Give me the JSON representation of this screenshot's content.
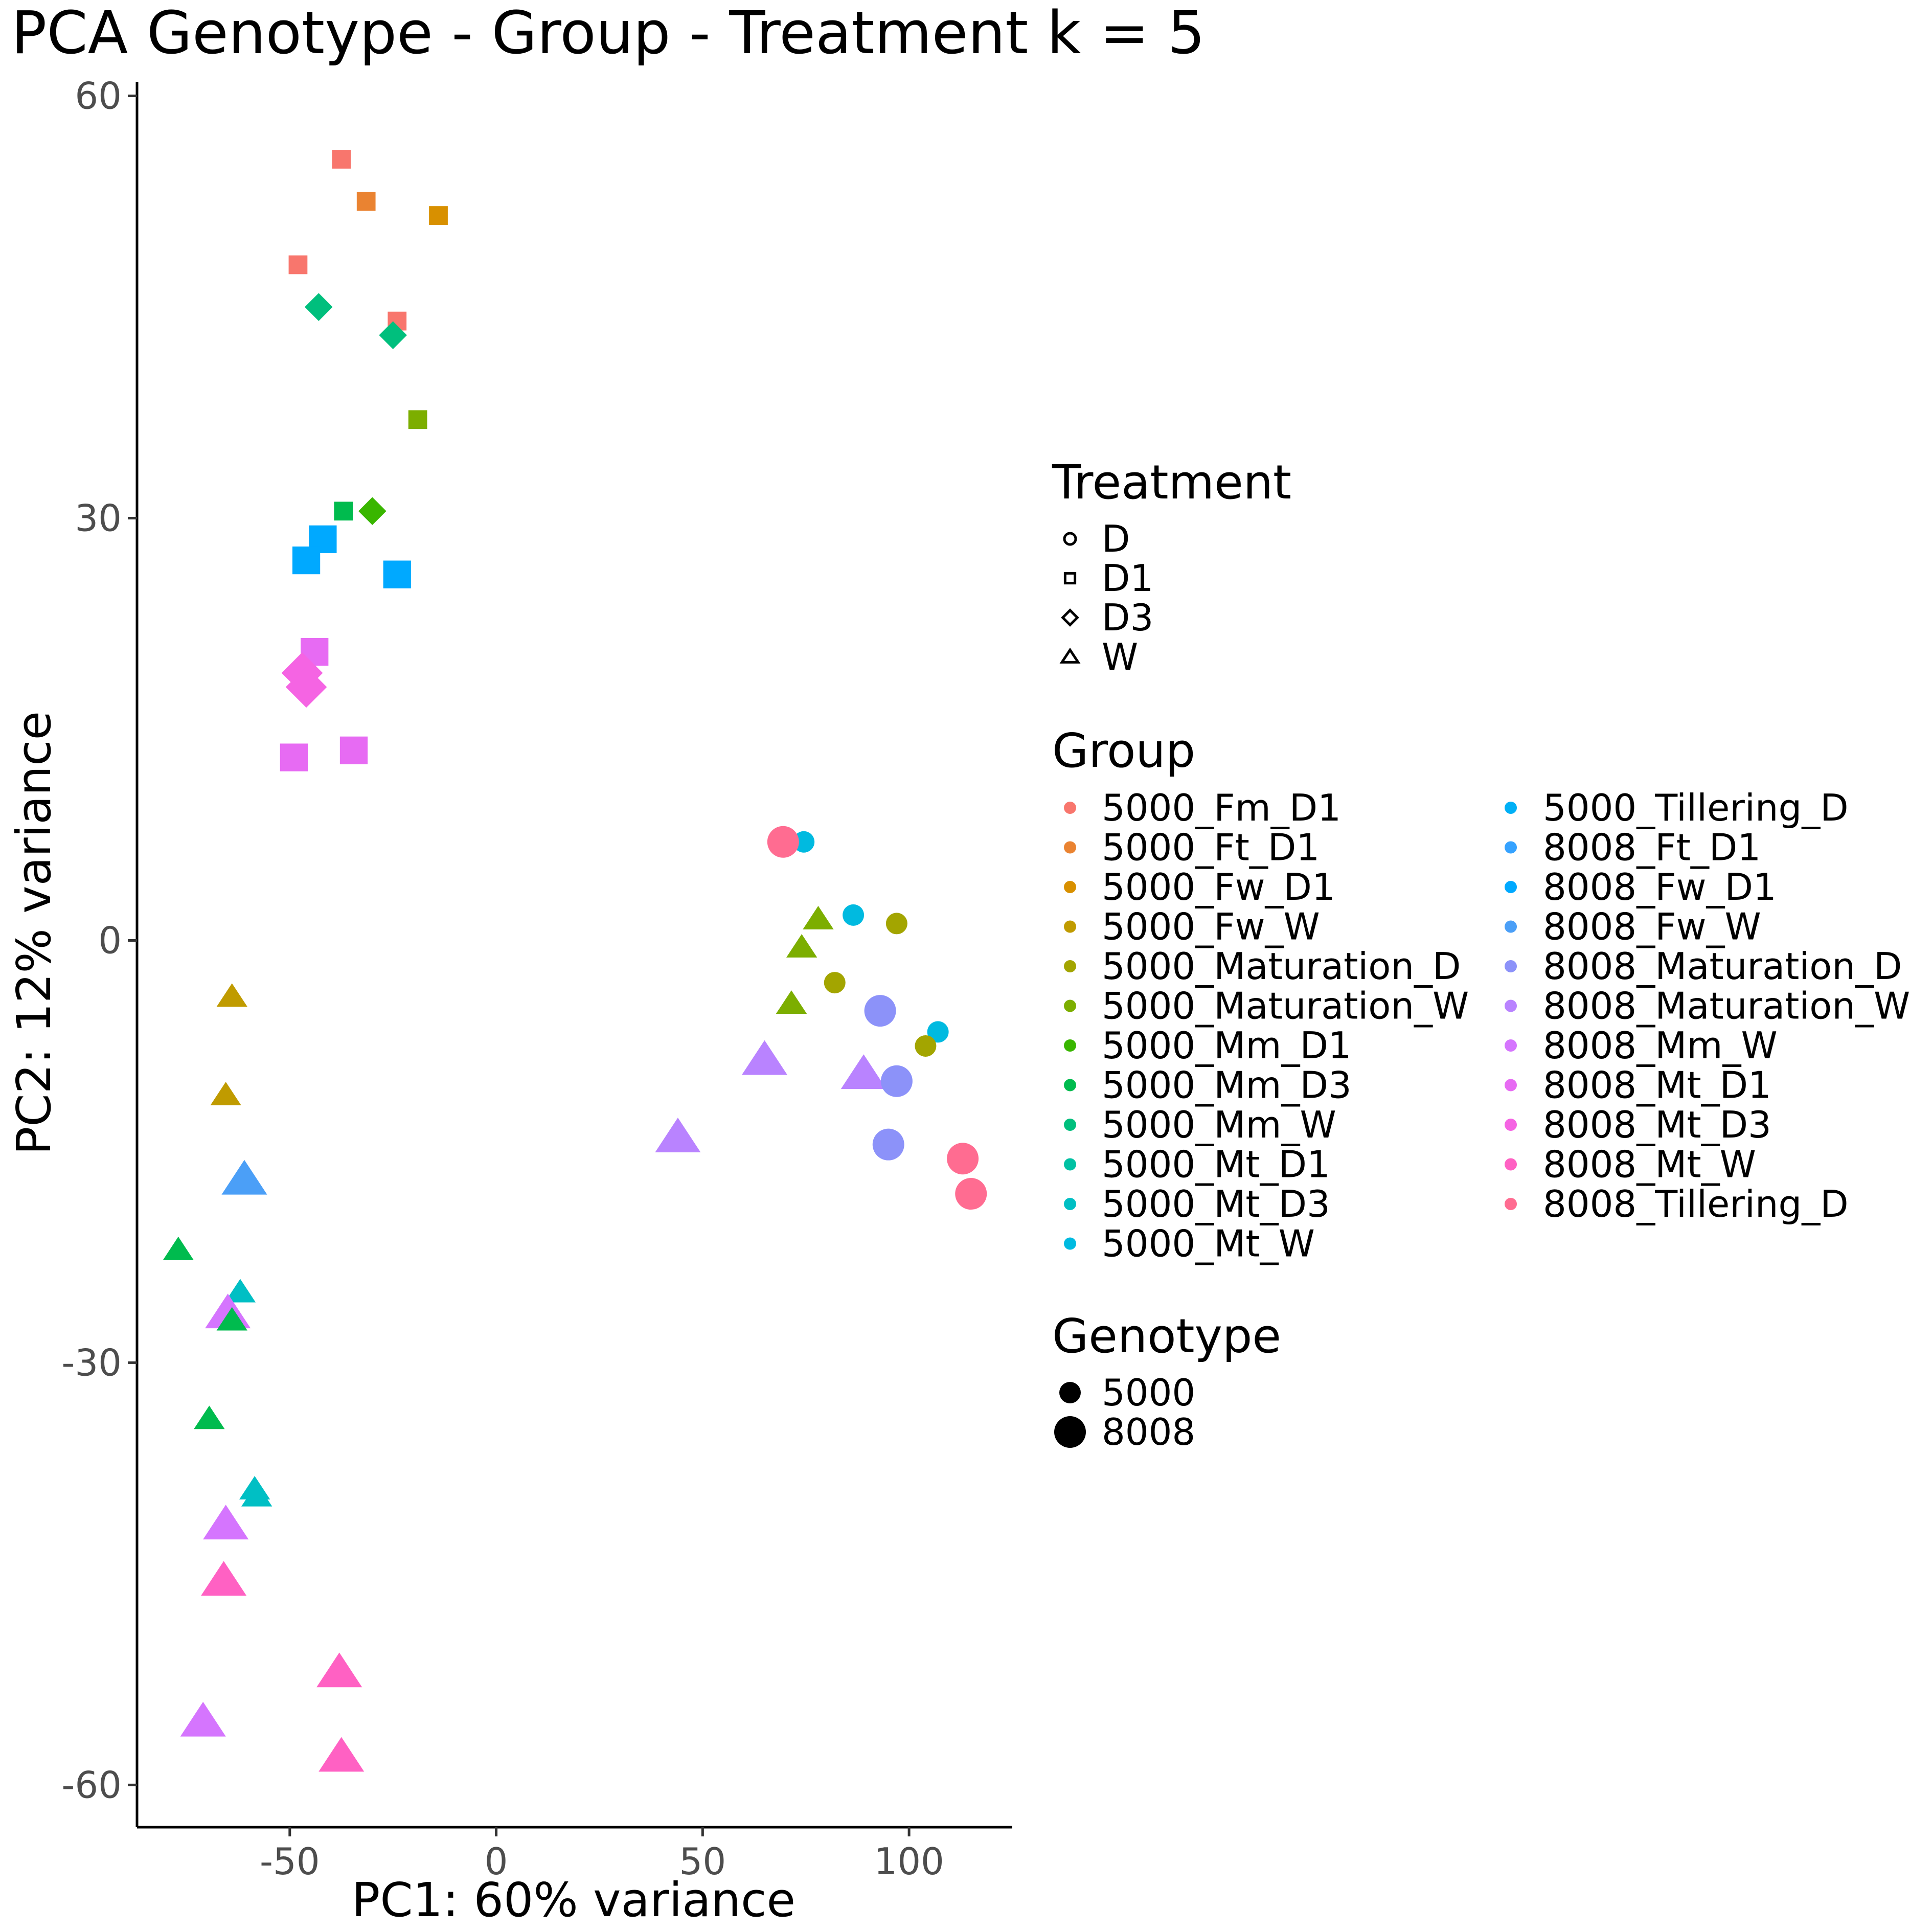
{
  "chart_data": {
    "type": "scatter",
    "title": "PCA Genotype - Group - Treatment k = 5",
    "xlabel": "PC1: 60% variance",
    "ylabel": "PC2: 12% variance",
    "xlim": [
      -87,
      125
    ],
    "ylim": [
      -63,
      61
    ],
    "x_ticks": [
      {
        "value": -50,
        "label": "-50"
      },
      {
        "value": 0,
        "label": "0"
      },
      {
        "value": 50,
        "label": "50"
      },
      {
        "value": 100,
        "label": "100"
      }
    ],
    "y_ticks": [
      {
        "value": 60,
        "label": "60"
      },
      {
        "value": 30,
        "label": "30"
      },
      {
        "value": 0,
        "label": "0"
      },
      {
        "value": -30,
        "label": "-30"
      },
      {
        "value": -60,
        "label": "-60"
      }
    ],
    "grid": false,
    "legend_placement": "right",
    "legends": {
      "treatment": {
        "title": "Treatment",
        "items": [
          {
            "label": "D",
            "shape": "circle"
          },
          {
            "label": "D1",
            "shape": "square"
          },
          {
            "label": "D3",
            "shape": "diamond"
          },
          {
            "label": "W",
            "shape": "triangle"
          }
        ]
      },
      "group": {
        "title": "Group",
        "items": [
          {
            "label": "5000_Fm_D1",
            "color": "#F8766D"
          },
          {
            "label": "5000_Ft_D1",
            "color": "#EA8331"
          },
          {
            "label": "5000_Fw_D1",
            "color": "#D89000"
          },
          {
            "label": "5000_Fw_W",
            "color": "#C09B00"
          },
          {
            "label": "5000_Maturation_D",
            "color": "#A3A500"
          },
          {
            "label": "5000_Maturation_W",
            "color": "#7CAE00"
          },
          {
            "label": "5000_Mm_D1",
            "color": "#39B600"
          },
          {
            "label": "5000_Mm_D3",
            "color": "#00BB4E"
          },
          {
            "label": "5000_Mm_W",
            "color": "#00BF7D"
          },
          {
            "label": "5000_Mt_D1",
            "color": "#00C1A3"
          },
          {
            "label": "5000_Mt_D3",
            "color": "#00BFC4"
          },
          {
            "label": "5000_Mt_W",
            "color": "#00BAE0"
          },
          {
            "label": "5000_Tillering_D",
            "color": "#00B0F6"
          },
          {
            "label": "8008_Ft_D1",
            "color": "#35A2FF"
          },
          {
            "label": "8008_Fw_D1",
            "color": "#00A9FF"
          },
          {
            "label": "8008_Fw_W",
            "color": "#4B9FF7"
          },
          {
            "label": "8008_Maturation_D",
            "color": "#8C92F9"
          },
          {
            "label": "8008_Maturation_W",
            "color": "#B983FF"
          },
          {
            "label": "8008_Mm_W",
            "color": "#D575FE"
          },
          {
            "label": "8008_Mt_D1",
            "color": "#E76BF3"
          },
          {
            "label": "8008_Mt_D3",
            "color": "#F564E3"
          },
          {
            "label": "8008_Mt_W",
            "color": "#FF61C3"
          },
          {
            "label": "8008_Tillering_D",
            "color": "#FF6C91"
          }
        ]
      },
      "genotype": {
        "title": "Genotype",
        "items": [
          {
            "label": "5000",
            "size": "small"
          },
          {
            "label": "8008",
            "size": "large"
          }
        ]
      }
    },
    "points": [
      {
        "x": -37.5,
        "y": 55.5,
        "color": "#F8766D",
        "shape": "square",
        "genotype": "5000"
      },
      {
        "x": -31.5,
        "y": 52.5,
        "color": "#EA8331",
        "shape": "square",
        "genotype": "5000"
      },
      {
        "x": -14,
        "y": 51.5,
        "color": "#D89000",
        "shape": "square",
        "genotype": "5000"
      },
      {
        "x": -48,
        "y": 48,
        "color": "#F8766D",
        "shape": "square",
        "genotype": "5000"
      },
      {
        "x": -24,
        "y": 44,
        "color": "#F8766D",
        "shape": "square",
        "genotype": "5000"
      },
      {
        "x": -43,
        "y": 45,
        "color": "#00BF7D",
        "shape": "diamond",
        "genotype": "5000"
      },
      {
        "x": -25,
        "y": 43,
        "color": "#00BF7D",
        "shape": "diamond",
        "genotype": "5000"
      },
      {
        "x": -19,
        "y": 37,
        "color": "#7CAE00",
        "shape": "square",
        "genotype": "5000"
      },
      {
        "x": -37,
        "y": 30.5,
        "color": "#00BB4E",
        "shape": "square",
        "genotype": "5000"
      },
      {
        "x": -30,
        "y": 30.5,
        "color": "#39B600",
        "shape": "diamond",
        "genotype": "5000"
      },
      {
        "x": -42,
        "y": 28.5,
        "color": "#00A9FF",
        "shape": "square",
        "genotype": "8008"
      },
      {
        "x": -46,
        "y": 27,
        "color": "#00A9FF",
        "shape": "square",
        "genotype": "8008"
      },
      {
        "x": -24,
        "y": 26,
        "color": "#00A9FF",
        "shape": "square",
        "genotype": "8008"
      },
      {
        "x": -44,
        "y": 20.5,
        "color": "#E76BF3",
        "shape": "square",
        "genotype": "8008"
      },
      {
        "x": -47,
        "y": 19,
        "color": "#F564E3",
        "shape": "diamond",
        "genotype": "8008"
      },
      {
        "x": -46,
        "y": 18,
        "color": "#F564E3",
        "shape": "diamond",
        "genotype": "8008"
      },
      {
        "x": -49,
        "y": 13,
        "color": "#E76BF3",
        "shape": "square",
        "genotype": "8008"
      },
      {
        "x": -34.5,
        "y": 13.5,
        "color": "#E76BF3",
        "shape": "square",
        "genotype": "8008"
      },
      {
        "x": 74.5,
        "y": 7,
        "color": "#00BAE0",
        "shape": "circle",
        "genotype": "5000"
      },
      {
        "x": 69.5,
        "y": 7,
        "color": "#FF6C91",
        "shape": "circle",
        "genotype": "8008"
      },
      {
        "x": 86.5,
        "y": 1.8,
        "color": "#00BAE0",
        "shape": "circle",
        "genotype": "5000"
      },
      {
        "x": 97,
        "y": 1.2,
        "color": "#A3A500",
        "shape": "circle",
        "genotype": "5000"
      },
      {
        "x": 78,
        "y": 1.5,
        "color": "#7CAE00",
        "shape": "triangle",
        "genotype": "5000"
      },
      {
        "x": 74,
        "y": -0.5,
        "color": "#7CAE00",
        "shape": "triangle",
        "genotype": "5000"
      },
      {
        "x": 82,
        "y": -3,
        "color": "#A3A500",
        "shape": "circle",
        "genotype": "5000"
      },
      {
        "x": 71.5,
        "y": -4.5,
        "color": "#7CAE00",
        "shape": "triangle",
        "genotype": "5000"
      },
      {
        "x": 93,
        "y": -5,
        "color": "#8C92F9",
        "shape": "circle",
        "genotype": "8008"
      },
      {
        "x": 107,
        "y": -6.5,
        "color": "#00BAE0",
        "shape": "circle",
        "genotype": "5000"
      },
      {
        "x": 104,
        "y": -7.5,
        "color": "#A3A500",
        "shape": "circle",
        "genotype": "5000"
      },
      {
        "x": 65,
        "y": -8.5,
        "color": "#B983FF",
        "shape": "triangle",
        "genotype": "8008"
      },
      {
        "x": 89,
        "y": -9.5,
        "color": "#B983FF",
        "shape": "triangle",
        "genotype": "8008"
      },
      {
        "x": 97,
        "y": -10,
        "color": "#8C92F9",
        "shape": "circle",
        "genotype": "8008"
      },
      {
        "x": 44,
        "y": -14,
        "color": "#B983FF",
        "shape": "triangle",
        "genotype": "8008"
      },
      {
        "x": 95,
        "y": -14.5,
        "color": "#8C92F9",
        "shape": "circle",
        "genotype": "8008"
      },
      {
        "x": 113,
        "y": -15.5,
        "color": "#FF6C91",
        "shape": "circle",
        "genotype": "8008"
      },
      {
        "x": 115,
        "y": -18,
        "color": "#FF6C91",
        "shape": "circle",
        "genotype": "8008"
      },
      {
        "x": -64,
        "y": -4,
        "color": "#C09B00",
        "shape": "triangle",
        "genotype": "5000"
      },
      {
        "x": -65.5,
        "y": -11,
        "color": "#C09B00",
        "shape": "triangle",
        "genotype": "5000"
      },
      {
        "x": -61,
        "y": -17,
        "color": "#4B9FF7",
        "shape": "triangle",
        "genotype": "8008"
      },
      {
        "x": -77,
        "y": -22,
        "color": "#00BB4E",
        "shape": "triangle",
        "genotype": "5000"
      },
      {
        "x": -62,
        "y": -25,
        "color": "#00BFC4",
        "shape": "triangle",
        "genotype": "5000"
      },
      {
        "x": -65,
        "y": -26.5,
        "color": "#D575FE",
        "shape": "triangle",
        "genotype": "8008"
      },
      {
        "x": -64,
        "y": -27,
        "color": "#00BB4E",
        "shape": "triangle",
        "genotype": "5000"
      },
      {
        "x": -69.5,
        "y": -34,
        "color": "#00BB4E",
        "shape": "triangle",
        "genotype": "5000"
      },
      {
        "x": -58.5,
        "y": -39,
        "color": "#00BFC4",
        "shape": "triangle",
        "genotype": "5000"
      },
      {
        "x": -58,
        "y": -39.5,
        "color": "#00BFC4",
        "shape": "triangle",
        "genotype": "5000"
      },
      {
        "x": -65.5,
        "y": -41.5,
        "color": "#D575FE",
        "shape": "triangle",
        "genotype": "8008"
      },
      {
        "x": -66,
        "y": -45.5,
        "color": "#FF61C3",
        "shape": "triangle",
        "genotype": "8008"
      },
      {
        "x": -38,
        "y": -52,
        "color": "#FF61C3",
        "shape": "triangle",
        "genotype": "8008"
      },
      {
        "x": -71,
        "y": -55.5,
        "color": "#D575FE",
        "shape": "triangle",
        "genotype": "8008"
      },
      {
        "x": -37.5,
        "y": -58,
        "color": "#FF61C3",
        "shape": "triangle",
        "genotype": "8008"
      }
    ]
  }
}
